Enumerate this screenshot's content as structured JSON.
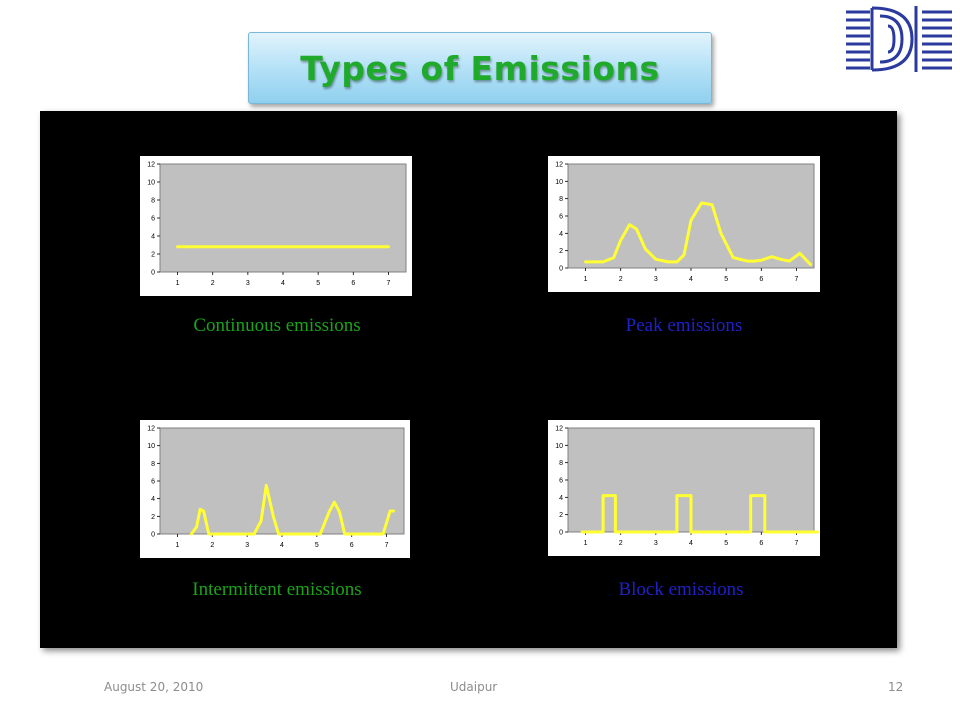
{
  "slide": {
    "title": "Types of Emissions",
    "footer_date": "August 20, 2010",
    "footer_place": "Udaipur",
    "page_number": "12",
    "colors": {
      "title_text": "#1faa2c",
      "panel": "#000000",
      "plot_area": "#c0c0c0",
      "series_line": "#ffff33",
      "caption_green": "#1aa31a",
      "caption_blue": "#2020c8",
      "logo_blue": "#2b3a9e"
    },
    "logo_icon": "institute-logo-icon"
  },
  "charts": [
    {
      "caption": "Continuous emissions",
      "caption_color": "#1aa31a"
    },
    {
      "caption": "Peak emissions",
      "caption_color": "#2020c8"
    },
    {
      "caption": "Intermittent emissions",
      "caption_color": "#1aa31a"
    },
    {
      "caption": "Block emissions",
      "caption_color": "#2020c8"
    }
  ],
  "chart_data": [
    {
      "type": "line",
      "x": [
        1,
        1.5,
        2,
        2.5,
        3,
        3.5,
        4,
        4.5,
        5,
        5.5,
        6,
        6.5,
        7
      ],
      "series": [
        {
          "values": [
            2.8,
            2.8,
            2.8,
            2.8,
            2.8,
            2.8,
            2.8,
            2.8,
            2.8,
            2.8,
            2.8,
            2.8,
            2.8
          ]
        }
      ],
      "ylim": [
        0,
        12
      ],
      "yticks": [
        "0",
        "2",
        "4",
        "6",
        "8",
        "10",
        "12"
      ],
      "xticks": [
        "1",
        "2",
        "3",
        "4",
        "5",
        "6",
        "7"
      ],
      "grid": false
    },
    {
      "type": "line",
      "x": [
        1,
        1.5,
        1.8,
        2.0,
        2.25,
        2.45,
        2.7,
        3.0,
        3.35,
        3.6,
        3.8,
        4.0,
        4.3,
        4.6,
        4.85,
        5.2,
        5.6,
        5.8,
        6.0,
        6.3,
        6.55,
        6.8,
        7.1,
        7.4
      ],
      "series": [
        {
          "values": [
            0.7,
            0.7,
            1.2,
            3.2,
            5.0,
            4.5,
            2.2,
            1.0,
            0.7,
            0.7,
            1.5,
            5.5,
            7.5,
            7.3,
            4.0,
            1.2,
            0.8,
            0.8,
            0.9,
            1.3,
            1.0,
            0.8,
            1.7,
            0.4
          ]
        }
      ],
      "ylim": [
        0,
        12
      ],
      "yticks": [
        "0",
        "2",
        "4",
        "6",
        "8",
        "10",
        "12"
      ],
      "xticks": [
        "1",
        "2",
        "3",
        "4",
        "5",
        "6",
        "7"
      ],
      "grid": false
    },
    {
      "type": "line",
      "x": [
        1.4,
        1.55,
        1.65,
        1.75,
        1.9,
        3.2,
        3.4,
        3.55,
        3.75,
        3.9,
        5.1,
        5.35,
        5.5,
        5.65,
        5.8,
        6.9,
        7.1,
        7.2
      ],
      "series": [
        {
          "values": [
            0,
            0.8,
            2.8,
            2.6,
            0,
            0,
            1.5,
            5.5,
            2.0,
            0,
            0,
            2.5,
            3.6,
            2.5,
            0,
            0,
            2.6,
            2.6
          ]
        }
      ],
      "ylim": [
        0,
        12
      ],
      "yticks": [
        "0",
        "2",
        "4",
        "6",
        "8",
        "10",
        "12"
      ],
      "xticks": [
        "1",
        "2",
        "3",
        "4",
        "5",
        "6",
        "7"
      ],
      "grid": false
    },
    {
      "type": "line",
      "x": [
        0.9,
        1.5,
        1.5,
        1.85,
        1.85,
        3.6,
        3.6,
        4.0,
        4.0,
        5.7,
        5.7,
        6.1,
        6.1,
        7.6
      ],
      "series": [
        {
          "values": [
            0,
            0,
            4.2,
            4.2,
            0,
            0,
            4.2,
            4.2,
            0,
            0,
            4.2,
            4.2,
            0,
            0
          ]
        }
      ],
      "ylim": [
        0,
        12
      ],
      "yticks": [
        "0",
        "2",
        "4",
        "6",
        "8",
        "10",
        "12"
      ],
      "xticks": [
        "1",
        "2",
        "3",
        "4",
        "5",
        "6",
        "7"
      ],
      "grid": false
    }
  ]
}
